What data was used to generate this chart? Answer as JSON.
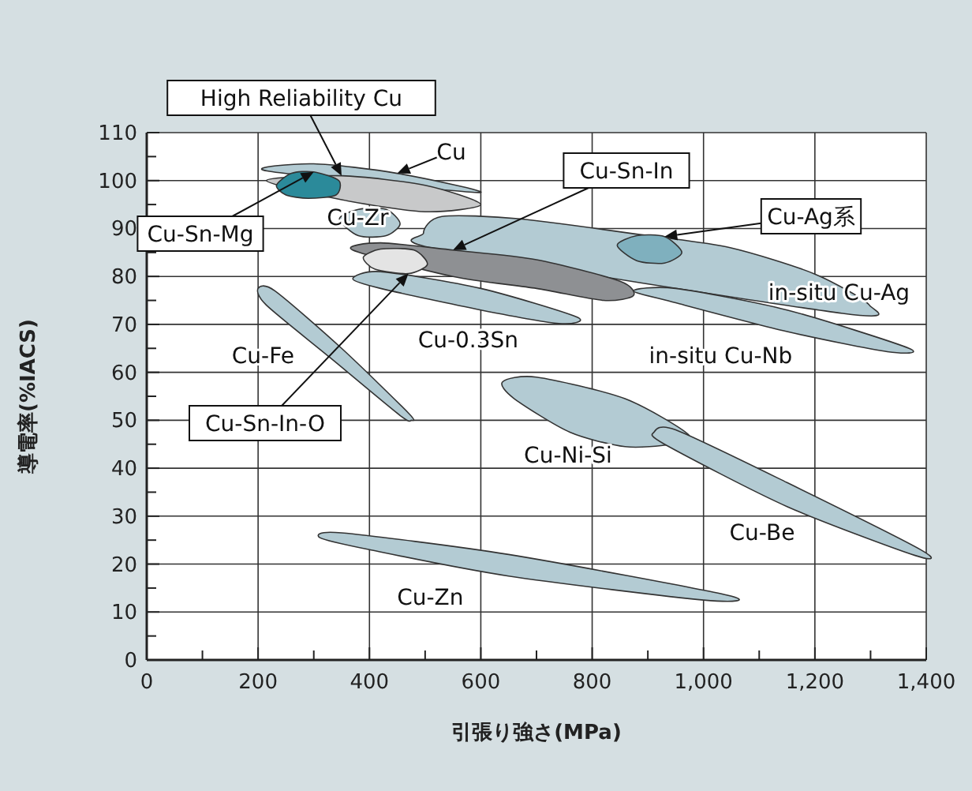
{
  "chart_data": {
    "type": "area",
    "xlabel": "引張り強さ(MPa)",
    "ylabel": "導電率(%IACS)",
    "xlim": [
      0,
      1400
    ],
    "ylim": [
      0,
      110
    ],
    "xticks": [
      0,
      {
        "value": 100,
        "label": null
      },
      200,
      {
        "value": 300,
        "label": null
      },
      400,
      {
        "value": 500,
        "label": null
      },
      600,
      {
        "value": 700,
        "label": null
      },
      800,
      {
        "value": 900,
        "label": null
      },
      {
        "value": 1000,
        "label": "1,000"
      },
      {
        "value": 1100,
        "label": null
      },
      {
        "value": 1200,
        "label": "1,200"
      },
      {
        "value": 1300,
        "label": null
      },
      {
        "value": 1400,
        "label": "1,400"
      }
    ],
    "yticks": [
      0,
      {
        "value": 5,
        "label": null
      },
      10,
      {
        "value": 15,
        "label": null
      },
      20,
      {
        "value": 25,
        "label": null
      },
      30,
      {
        "value": 35,
        "label": null
      },
      40,
      {
        "value": 45,
        "label": null
      },
      50,
      {
        "value": 55,
        "label": null
      },
      60,
      {
        "value": 65,
        "label": null
      },
      70,
      {
        "value": 75,
        "label": null
      },
      80,
      {
        "value": 85,
        "label": null
      },
      90,
      {
        "value": 95,
        "label": null
      },
      100,
      {
        "value": 105,
        "label": null
      },
      110
    ],
    "grid": true,
    "series": [
      {
        "color": "#b3cbd3",
        "x": [
          216,
          300,
          450,
          596
        ],
        "values": [
          102,
          103.5,
          101.5,
          97.5
        ]
      },
      {
        "color": "#c8c9ca",
        "x": [
          215,
          350,
          500,
          600,
          500,
          350
        ],
        "values": [
          100,
          101,
          99,
          95,
          93.5,
          96
        ]
      },
      {
        "color": "#2b8a9a",
        "x": [
          233,
          260,
          300,
          345,
          340,
          290,
          250
        ],
        "values": [
          99,
          101.5,
          101.8,
          100,
          97,
          96.3,
          97
        ]
      },
      {
        "color": "#b3cbd3",
        "x": [
          346,
          380,
          430,
          455,
          430,
          380
        ],
        "values": [
          92,
          94,
          94,
          91,
          88.5,
          88.5
        ]
      },
      {
        "color": "#b3cbd3",
        "x": [
          497,
          530,
          671,
          900,
          1048,
          1200,
          1298,
          1250,
          1048,
          859,
          650,
          530
        ],
        "values": [
          89,
          92.5,
          92,
          88.5,
          86,
          80.5,
          74,
          72.3,
          null,
          null,
          null,
          85.5
        ]
      },
      {
        "color": "#7fb0be",
        "x": [
          845,
          880,
          930,
          961,
          930,
          880
        ],
        "values": [
          86.5,
          88.5,
          88.3,
          85,
          82.8,
          83.3
        ]
      },
      {
        "color": "#8e9093",
        "x": [
          370,
          420,
          550,
          700,
          850,
          874,
          820,
          700,
          550
        ],
        "values": [
          85.5,
          87,
          85.5,
          83.5,
          79,
          76,
          75,
          77.5,
          80
        ]
      },
      {
        "color": "#e4e4e4",
        "x": [
          389,
          420,
          480,
          504,
          470,
          410
        ],
        "values": [
          84,
          85.7,
          85.5,
          82.5,
          80.6,
          81.5
        ]
      },
      {
        "color": "#b3cbd3",
        "x": [
          370,
          420,
          600,
          773,
          740,
          600,
          420
        ],
        "values": [
          79.5,
          81,
          77.5,
          71.5,
          70.2,
          73,
          77.5
        ]
      },
      {
        "color": "#b3cbd3",
        "x": [
          874,
          950,
          1150,
          1369,
          1330,
          1150,
          950
        ],
        "values": [
          77,
          77.5,
          73,
          65,
          64.3,
          68.5,
          74.5
        ]
      },
      {
        "color": "#b3cbd3",
        "x": [
          200,
          230,
          350,
          470,
          475,
          455,
          330,
          215
        ],
        "values": [
          77.5,
          77,
          65,
          51.5,
          50,
          51,
          63,
          74
        ]
      },
      {
        "color": "#b3cbd3",
        "x": [
          639,
          700,
          859,
          973,
          940,
          859,
          760,
          660
        ],
        "values": [
          58,
          59,
          54.5,
          47,
          45,
          44.5,
          47.5,
          54.5
        ]
      },
      {
        "color": "#b3cbd3",
        "x": [
          911,
          950,
          1150,
          1390,
          1380,
          1150,
          930
        ],
        "values": [
          47.5,
          48,
          37,
          23,
          21.8,
          32,
          45
        ]
      },
      {
        "color": "#b3cbd3",
        "x": [
          311,
          350,
          650,
          1043,
          1000,
          650,
          400
        ],
        "values": [
          25.5,
          26.5,
          22,
          13.5,
          12.5,
          17.5,
          23
        ]
      }
    ],
    "annotations": [
      {
        "text": "High Reliability Cu",
        "x": 350,
        "y": 101
      },
      {
        "text": "Cu",
        "x": 450,
        "y": 101.5
      },
      {
        "text": "Cu-Sn-Mg",
        "x": 300,
        "y": 101.8
      },
      "Cu-Zr",
      {
        "text": "Cu-Sn-In",
        "x": 550,
        "y": 85.5
      },
      {
        "text": "Cu-Ag系",
        "x": 930,
        "y": 88.3
      },
      "in-situ Cu-Ag",
      "Cu-0.3Sn",
      "in-situ Cu-Nb",
      "Cu-Fe",
      {
        "text": "Cu-Sn-In-O",
        "x": 470,
        "y": 80.6
      },
      "Cu-Ni-Si",
      "Cu-Be",
      "Cu-Zn"
    ]
  }
}
